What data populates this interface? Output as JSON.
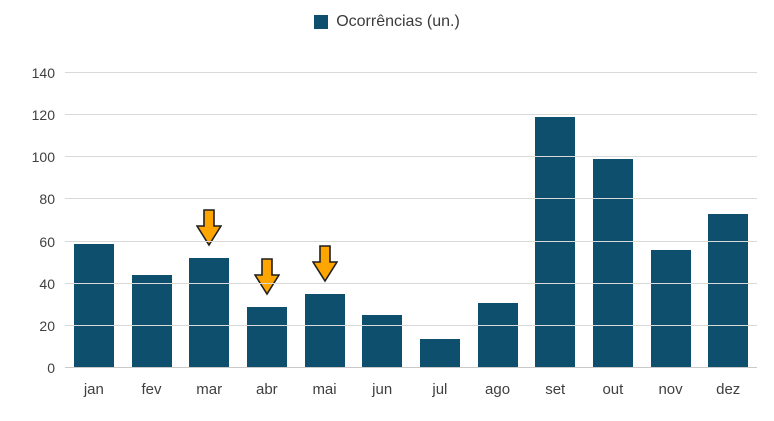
{
  "legend": {
    "label": "Ocorrências (un.)",
    "swatch_color": "#0e4f6e"
  },
  "chart_data": {
    "type": "bar",
    "title": "",
    "xlabel": "",
    "ylabel": "",
    "categories": [
      "jan",
      "fev",
      "mar",
      "abr",
      "mai",
      "jun",
      "jul",
      "ago",
      "set",
      "out",
      "nov",
      "dez"
    ],
    "series": [
      {
        "name": "Ocorrências (un.)",
        "values": [
          59,
          44,
          52,
          29,
          35,
          25,
          14,
          31,
          119,
          99,
          56,
          73
        ]
      }
    ],
    "ylim": [
      0,
      140
    ],
    "ytick_step": 20,
    "yticks": [
      0,
      20,
      40,
      60,
      80,
      100,
      120,
      140
    ],
    "grid": true,
    "legend_position": "top-center",
    "bar_color": "#0e4f6e",
    "annotations": [
      {
        "icon": "down-arrow-icon",
        "category": "mar",
        "fill": "#ffa500",
        "outline": "#1f1f1f"
      },
      {
        "icon": "down-arrow-icon",
        "category": "abr",
        "fill": "#ffa500",
        "outline": "#1f1f1f"
      },
      {
        "icon": "down-arrow-icon",
        "category": "mai",
        "fill": "#ffa500",
        "outline": "#1f1f1f"
      }
    ]
  },
  "colors": {
    "background": "#ffffff",
    "gridline": "#d9d9d9",
    "axis_text": "#404040",
    "bar": "#0e4f6e",
    "arrow_fill": "#ffa500",
    "arrow_outline": "#1f1f1f"
  }
}
